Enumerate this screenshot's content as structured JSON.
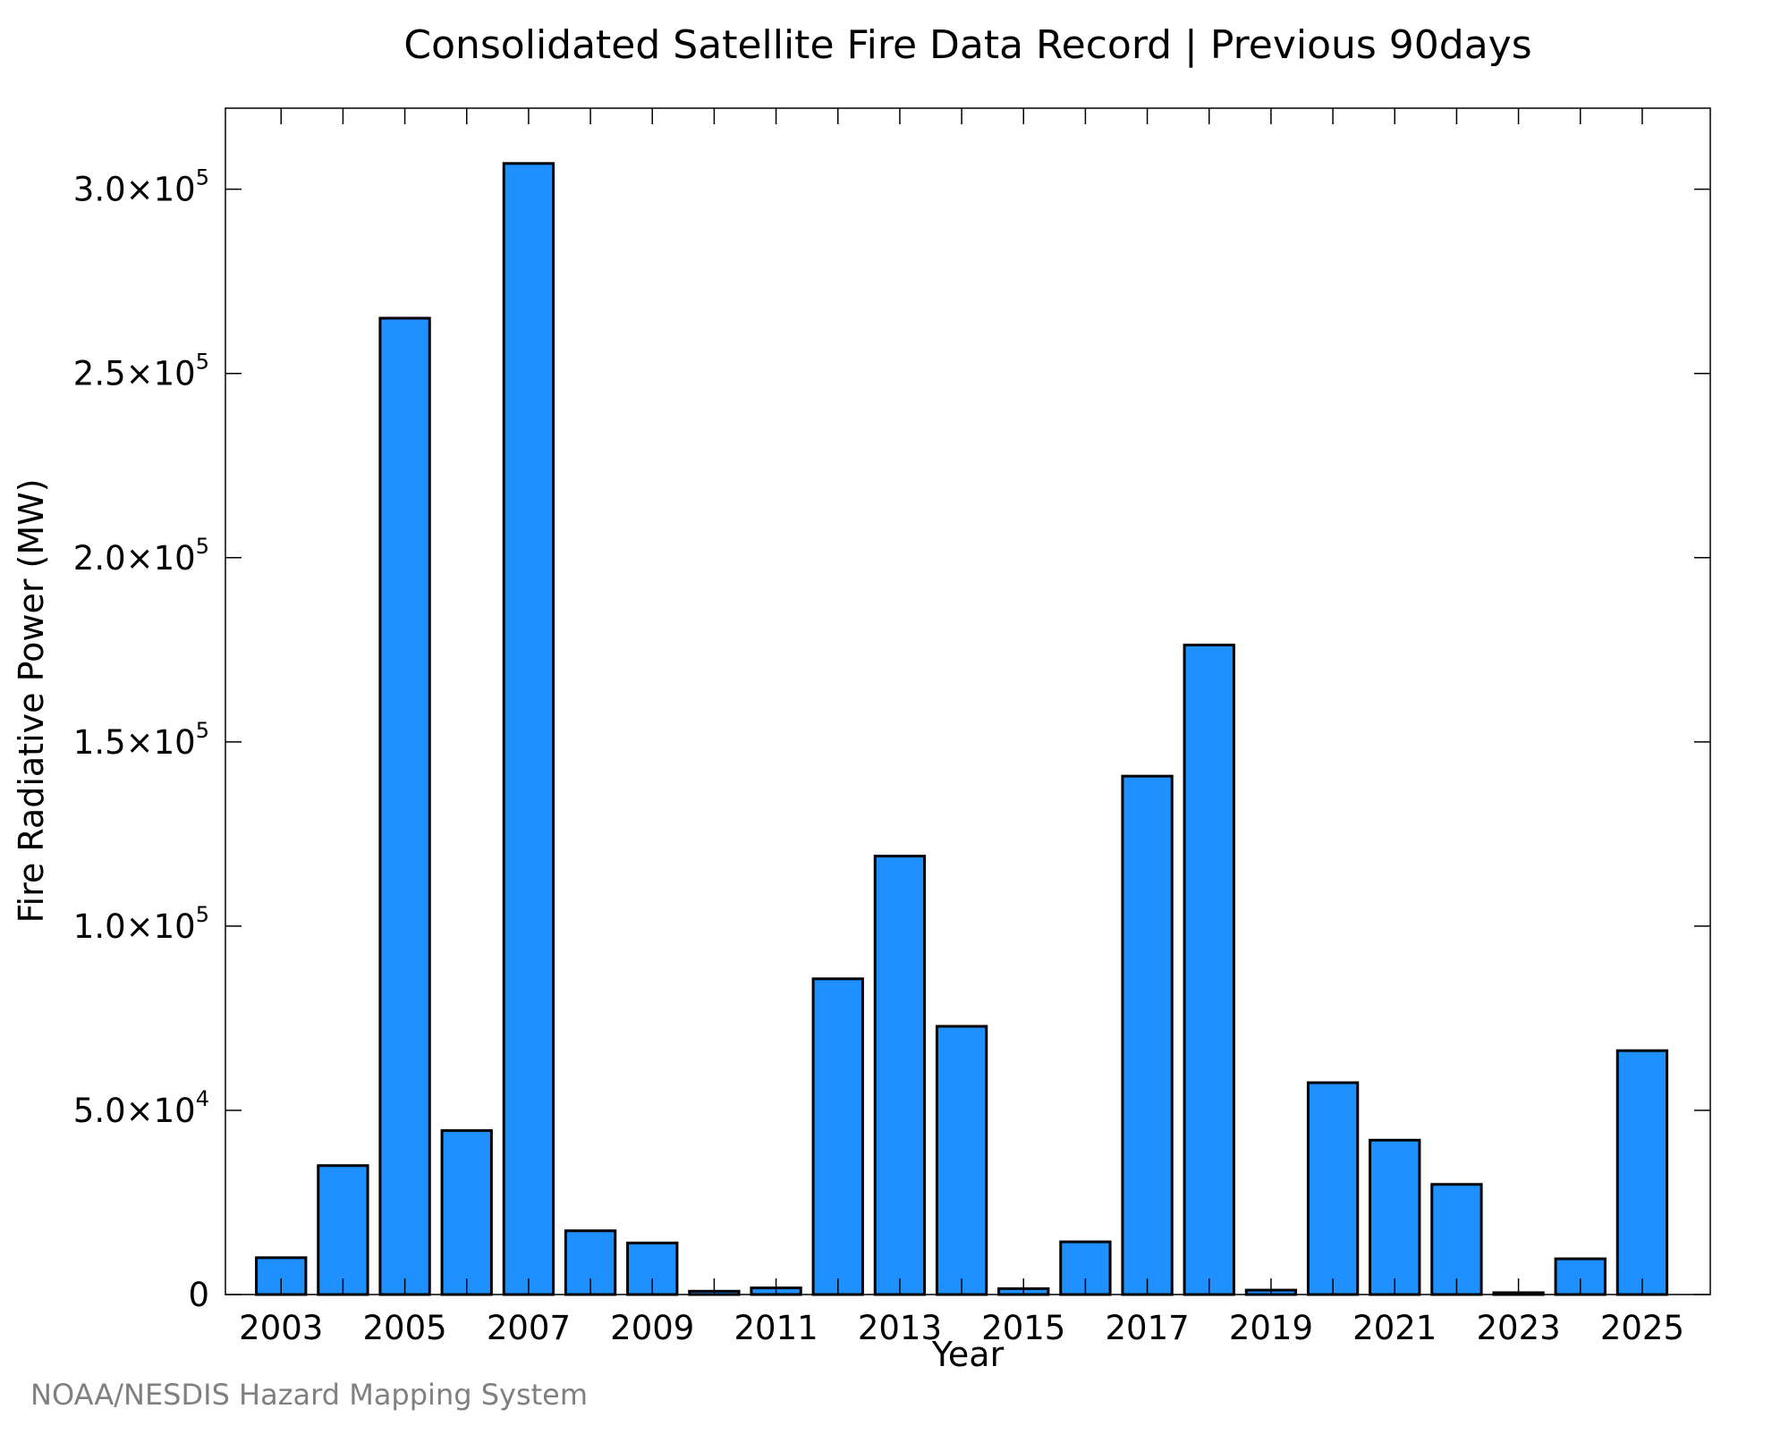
{
  "source_note": "NOAA/NESDIS Hazard Mapping System",
  "colors": {
    "bar_fill": "#1e90ff",
    "bar_stroke": "#000000",
    "axis": "#000000",
    "source_text": "#808080"
  },
  "chart_data": {
    "type": "bar",
    "title": "Consolidated Satellite Fire Data Record | Previous 90days",
    "xlabel": "Year",
    "ylabel": "Fire Radiative Power (MW)",
    "categories": [
      "2003",
      "2004",
      "2005",
      "2006",
      "2007",
      "2008",
      "2009",
      "2010",
      "2011",
      "2012",
      "2013",
      "2014",
      "2015",
      "2016",
      "2017",
      "2018",
      "2019",
      "2020",
      "2021",
      "2022",
      "2023",
      "2024",
      "2025"
    ],
    "values": [
      10000,
      35000,
      265000,
      44500,
      307000,
      17300,
      14000,
      900,
      1800,
      85700,
      119000,
      72800,
      1600,
      14300,
      140700,
      176300,
      1200,
      57500,
      41900,
      29900,
      500,
      9700,
      66200
    ],
    "ylim": [
      0,
      322000
    ],
    "xlim": [
      2002.1,
      2026.1
    ],
    "x_tick_labels": [
      "2003",
      "2005",
      "2007",
      "2009",
      "2011",
      "2013",
      "2015",
      "2017",
      "2019",
      "2021",
      "2023",
      "2025"
    ],
    "y_ticks": [
      {
        "value": 0,
        "mantissa": "0",
        "exponent": ""
      },
      {
        "value": 50000,
        "mantissa": "5.0×10",
        "exponent": "4"
      },
      {
        "value": 100000,
        "mantissa": "1.0×10",
        "exponent": "5"
      },
      {
        "value": 150000,
        "mantissa": "1.5×10",
        "exponent": "5"
      },
      {
        "value": 200000,
        "mantissa": "2.0×10",
        "exponent": "5"
      },
      {
        "value": 250000,
        "mantissa": "2.5×10",
        "exponent": "5"
      },
      {
        "value": 300000,
        "mantissa": "3.0×10",
        "exponent": "5"
      }
    ],
    "grid": false,
    "legend": "none"
  }
}
